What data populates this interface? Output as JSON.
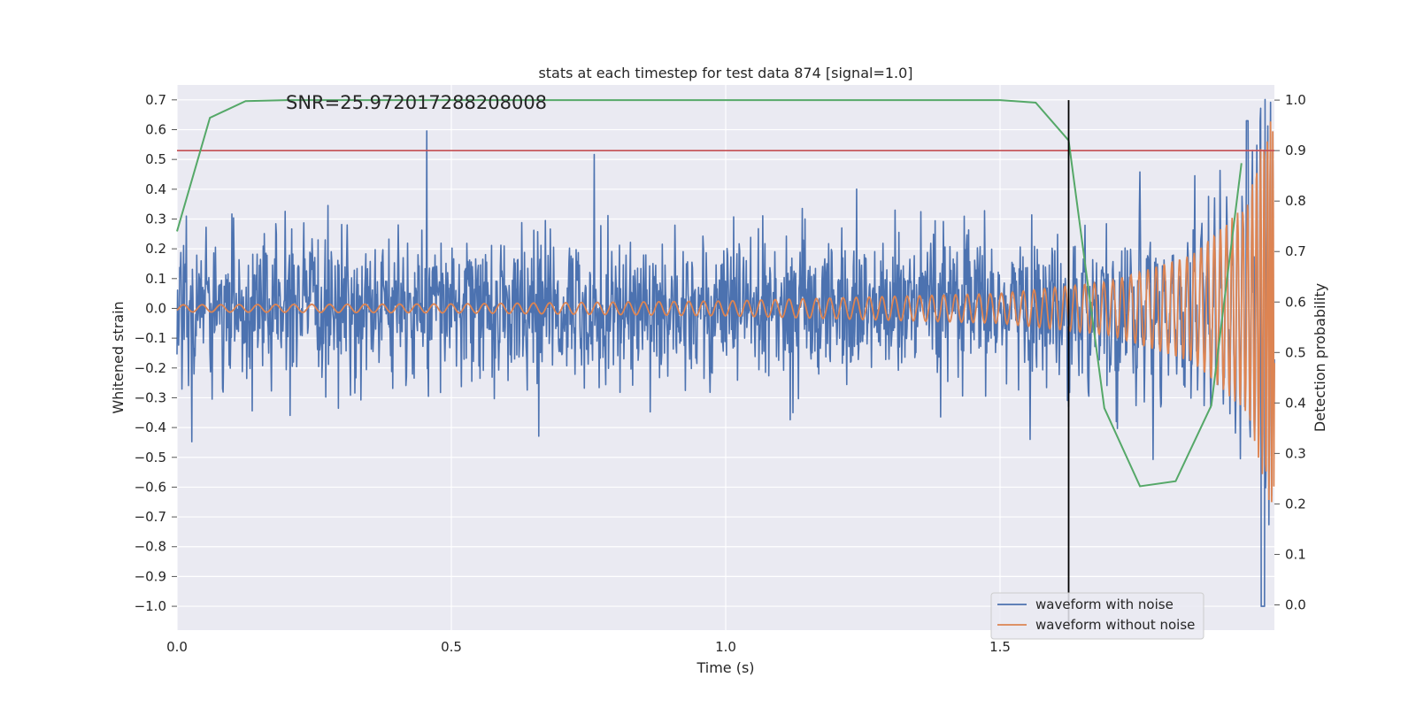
{
  "chart_data": {
    "type": "line",
    "title": "stats at each timestep for test data 874 [signal=1.0]",
    "annotation": "SNR=25.972017288208008",
    "xlabel": "Time (s)",
    "ylabel": "Whitened strain",
    "y2label": "Detection probability",
    "xlim": [
      0.0,
      2.0
    ],
    "ylim": [
      -1.08,
      0.75
    ],
    "y2lim": [
      -0.05,
      1.03
    ],
    "x_ticks": [
      "0.0",
      "0.5",
      "1.0",
      "1.5"
    ],
    "y_ticks": [
      "0.7",
      "0.6",
      "0.5",
      "0.4",
      "0.3",
      "0.2",
      "0.1",
      "0.0",
      "−0.1",
      "−0.2",
      "−0.3",
      "−0.4",
      "−0.5",
      "−0.6",
      "−0.7",
      "−0.8",
      "−0.9",
      "−1.0"
    ],
    "y2_ticks": [
      "1.0",
      "0.9",
      "0.8",
      "0.7",
      "0.6",
      "0.5",
      "0.4",
      "0.3",
      "0.2",
      "0.1",
      "0.0"
    ],
    "grid": true,
    "legend_position": "lower-right",
    "colors": {
      "noise": "#4c72b0",
      "clean": "#dd8452",
      "prob": "#55a868",
      "threshold": "#c44e52",
      "marker": "#000000",
      "background": "#eaeaf2",
      "grid": "#ffffff"
    },
    "series": [
      {
        "name": "waveform with noise",
        "description_values": "dense noise, roughly within ±0.35 strain, spikes up to 0.63 and down to -1.0 near t=1.98 s",
        "time_range": [
          0.0,
          2.0
        ],
        "typical_amplitude": 0.12
      },
      {
        "name": "waveform without noise",
        "description_values": "chirp signal with growing amplitude and frequency",
        "envelope": [
          [
            0.0,
            0.012
          ],
          [
            0.5,
            0.015
          ],
          [
            1.0,
            0.025
          ],
          [
            1.5,
            0.05
          ],
          [
            1.7,
            0.09
          ],
          [
            1.85,
            0.18
          ],
          [
            1.95,
            0.35
          ],
          [
            1.99,
            0.66
          ]
        ]
      },
      {
        "name": "",
        "axis": "right",
        "x": [
          0.0,
          0.06,
          0.125,
          0.2,
          1.5,
          1.565,
          1.625,
          1.69,
          1.755,
          1.82,
          1.885,
          1.94
        ],
        "values": [
          0.74,
          0.965,
          0.998,
          1.0,
          1.0,
          0.995,
          0.92,
          0.39,
          0.235,
          0.245,
          0.395,
          0.875
        ]
      }
    ],
    "hline": {
      "axis": "right",
      "value": 0.9
    },
    "vline": {
      "x": 1.625,
      "y2_range": [
        -0.05,
        1.0
      ]
    }
  }
}
